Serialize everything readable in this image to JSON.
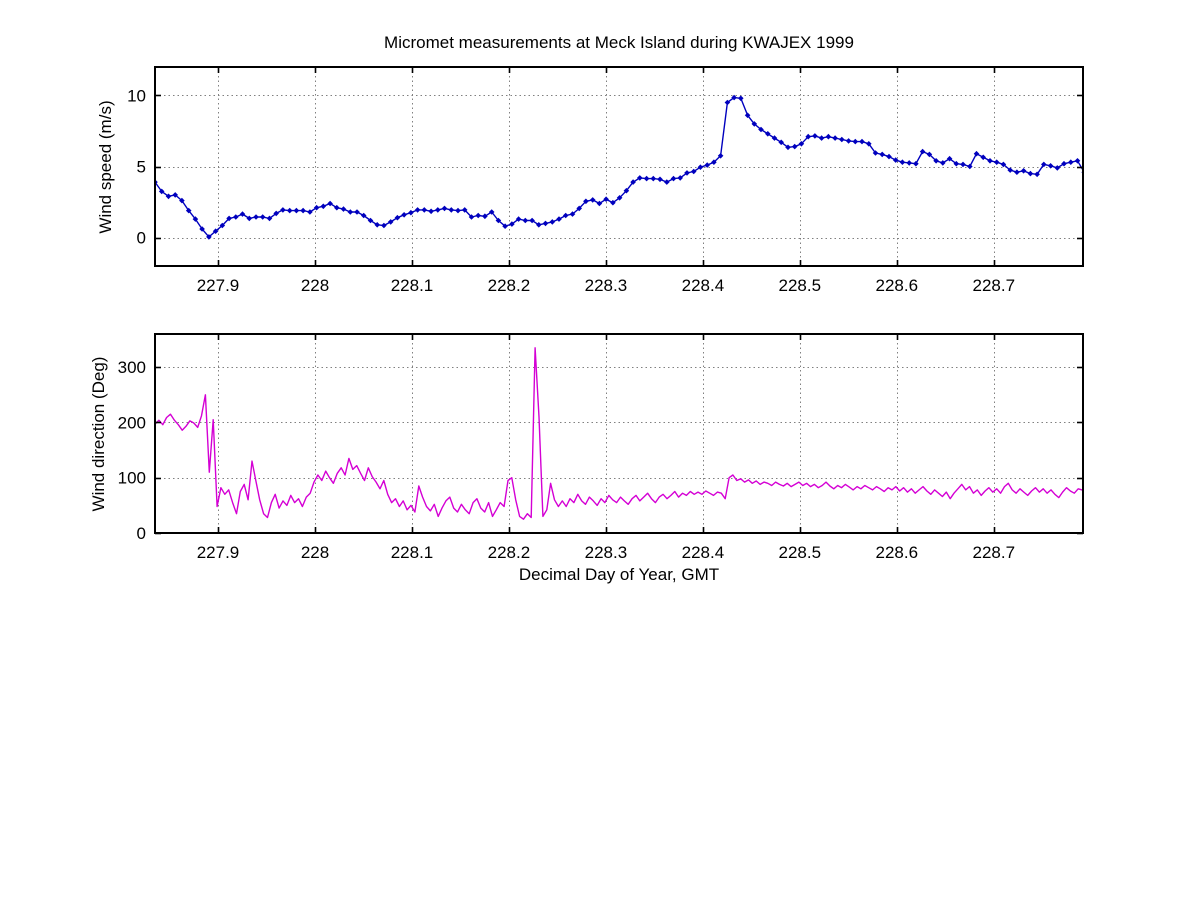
{
  "figure": {
    "title": "Micromet measurements at Meck Island during KWAJEX 1999",
    "background": "#ffffff",
    "axis_color": "#000000",
    "grid_color": "#808080"
  },
  "chart_data": [
    {
      "type": "line",
      "name": "wind-speed",
      "ylabel": "Wind speed (m/s)",
      "xlabel": "",
      "line_color": "#0000BE",
      "marker": "diamond",
      "grid": true,
      "legend": "none",
      "xlim": [
        227.835,
        228.792
      ],
      "ylim": [
        -2,
        12
      ],
      "x_ticks": [
        227.9,
        228.0,
        228.1,
        228.2,
        228.3,
        228.4,
        228.5,
        228.6,
        228.7
      ],
      "x_tick_labels": [
        "227.9",
        "228",
        "228.1",
        "228.2",
        "228.3",
        "228.4",
        "228.5",
        "228.6",
        "228.7"
      ],
      "y_ticks": [
        0,
        5,
        10
      ],
      "y_tick_labels": [
        "0",
        "5",
        "10"
      ],
      "x_start": 227.835,
      "x_step": 0.006944,
      "values": [
        3.9,
        3.25,
        2.9,
        3.0,
        2.6,
        1.9,
        1.3,
        0.6,
        0.05,
        0.45,
        0.85,
        1.35,
        1.45,
        1.65,
        1.35,
        1.45,
        1.45,
        1.35,
        1.7,
        1.95,
        1.9,
        1.9,
        1.9,
        1.8,
        2.1,
        2.2,
        2.4,
        2.1,
        2.0,
        1.8,
        1.8,
        1.55,
        1.2,
        0.9,
        0.85,
        1.1,
        1.4,
        1.6,
        1.75,
        1.95,
        1.95,
        1.85,
        1.95,
        2.05,
        1.95,
        1.9,
        1.95,
        1.45,
        1.55,
        1.5,
        1.8,
        1.2,
        0.8,
        0.95,
        1.3,
        1.2,
        1.2,
        0.9,
        1.0,
        1.1,
        1.3,
        1.55,
        1.65,
        2.05,
        2.55,
        2.65,
        2.4,
        2.7,
        2.45,
        2.8,
        3.3,
        3.9,
        4.2,
        4.15,
        4.15,
        4.1,
        3.9,
        4.15,
        4.2,
        4.55,
        4.65,
        4.95,
        5.1,
        5.3,
        5.75,
        9.5,
        9.85,
        9.8,
        8.6,
        8.0,
        7.6,
        7.3,
        7.0,
        6.7,
        6.35,
        6.4,
        6.6,
        7.1,
        7.15,
        7.0,
        7.1,
        7.0,
        6.9,
        6.8,
        6.75,
        6.75,
        6.6,
        5.95,
        5.85,
        5.7,
        5.45,
        5.3,
        5.25,
        5.2,
        6.05,
        5.85,
        5.4,
        5.25,
        5.55,
        5.2,
        5.15,
        5.0,
        5.9,
        5.65,
        5.4,
        5.3,
        5.15,
        4.75,
        4.6,
        4.7,
        4.5,
        4.45,
        5.15,
        5.05,
        4.9,
        5.2,
        5.3,
        5.4,
        4.6
      ]
    },
    {
      "type": "line",
      "name": "wind-direction",
      "ylabel": "Wind direction (Deg)",
      "xlabel": "Decimal Day of Year, GMT",
      "line_color": "#D400D4",
      "marker": "none",
      "grid": true,
      "legend": "none",
      "xlim": [
        227.835,
        228.792
      ],
      "ylim": [
        0,
        360
      ],
      "x_ticks": [
        227.9,
        228.0,
        228.1,
        228.2,
        228.3,
        228.4,
        228.5,
        228.6,
        228.7
      ],
      "x_tick_labels": [
        "227.9",
        "228",
        "228.1",
        "228.2",
        "228.3",
        "228.4",
        "228.5",
        "228.6",
        "228.7"
      ],
      "y_ticks": [
        0,
        100,
        200,
        300
      ],
      "y_tick_labels": [
        "0",
        "100",
        "200",
        "300"
      ],
      "x_start": 227.835,
      "x_step": 0.004,
      "values": [
        197,
        204,
        196,
        209,
        215,
        204,
        196,
        186,
        193,
        203,
        199,
        191,
        212,
        250,
        110,
        205,
        48,
        82,
        70,
        78,
        55,
        35,
        75,
        88,
        60,
        130,
        95,
        60,
        35,
        28,
        55,
        70,
        45,
        58,
        50,
        68,
        55,
        62,
        48,
        65,
        72,
        92,
        105,
        95,
        112,
        100,
        90,
        108,
        118,
        105,
        135,
        115,
        122,
        108,
        95,
        118,
        102,
        92,
        80,
        95,
        70,
        55,
        62,
        48,
        58,
        42,
        50,
        38,
        85,
        65,
        48,
        40,
        52,
        30,
        45,
        58,
        65,
        45,
        38,
        52,
        42,
        35,
        55,
        62,
        45,
        38,
        55,
        30,
        42,
        55,
        48,
        95,
        100,
        60,
        30,
        25,
        35,
        28,
        335,
        210,
        30,
        42,
        90,
        60,
        48,
        58,
        48,
        62,
        55,
        70,
        58,
        52,
        65,
        58,
        50,
        62,
        55,
        68,
        60,
        55,
        65,
        58,
        52,
        62,
        68,
        58,
        65,
        72,
        62,
        55,
        65,
        70,
        62,
        68,
        75,
        65,
        72,
        68,
        75,
        70,
        74,
        70,
        76,
        72,
        68,
        74,
        72,
        62,
        100,
        105,
        95,
        98,
        92,
        96,
        90,
        94,
        88,
        92,
        90,
        86,
        92,
        88,
        85,
        90,
        84,
        88,
        92,
        86,
        90,
        84,
        88,
        82,
        86,
        92,
        85,
        80,
        86,
        82,
        88,
        83,
        78,
        84,
        80,
        86,
        82,
        78,
        84,
        80,
        75,
        82,
        78,
        84,
        76,
        82,
        74,
        80,
        72,
        78,
        84,
        76,
        70,
        78,
        72,
        66,
        74,
        62,
        72,
        80,
        88,
        78,
        84,
        72,
        78,
        68,
        76,
        82,
        74,
        80,
        72,
        84,
        90,
        78,
        72,
        80,
        74,
        68,
        76,
        82,
        74,
        80,
        72,
        78,
        70,
        64,
        74,
        82,
        76,
        72,
        80,
        78
      ]
    }
  ]
}
